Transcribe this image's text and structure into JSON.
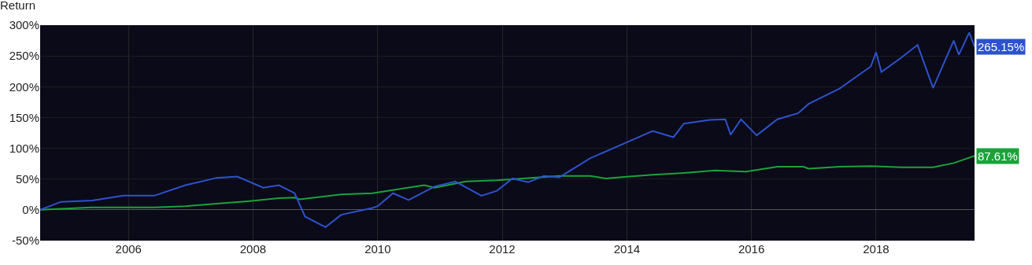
{
  "chart_data": {
    "type": "line",
    "title": "Return",
    "grid": true,
    "xlim": [
      "2004-08",
      "2019-08"
    ],
    "xticks": [
      {
        "value": "2006-01",
        "label": "2006"
      },
      {
        "value": "2008-01",
        "label": "2008"
      },
      {
        "value": "2010-01",
        "label": "2010"
      },
      {
        "value": "2012-01",
        "label": "2012"
      },
      {
        "value": "2014-01",
        "label": "2014"
      },
      {
        "value": "2016-01",
        "label": "2016"
      },
      {
        "value": "2018-01",
        "label": "2018"
      }
    ],
    "ylim": [
      -50,
      300
    ],
    "yticks": [
      {
        "value": -50,
        "label": "-50%"
      },
      {
        "value": 0,
        "label": "0%"
      },
      {
        "value": 50,
        "label": "50%"
      },
      {
        "value": 100,
        "label": "100%"
      },
      {
        "value": 150,
        "label": "150%"
      },
      {
        "value": 200,
        "label": "200%"
      },
      {
        "value": 250,
        "label": "250%"
      },
      {
        "value": 300,
        "label": "300%"
      }
    ],
    "series": [
      {
        "color": "#1aa33a",
        "x": [
          "2004-08",
          "2005-06",
          "2006-06",
          "2006-12",
          "2007-06",
          "2007-12",
          "2008-06",
          "2008-09",
          "2008-10",
          "2009-06",
          "2009-12",
          "2010-10",
          "2010-12",
          "2011-06",
          "2011-12",
          "2012-12",
          "2013-06",
          "2013-09",
          "2013-12",
          "2014-06",
          "2014-12",
          "2015-06",
          "2015-12",
          "2016-06",
          "2016-11",
          "2016-12",
          "2017-06",
          "2017-12",
          "2018-06",
          "2018-12",
          "2019-04",
          "2019-08"
        ],
        "values": [
          0,
          4,
          4,
          6,
          10,
          14,
          19,
          20,
          17,
          25,
          27,
          40,
          36,
          46,
          48,
          55,
          55,
          51,
          53,
          57,
          60,
          64,
          62,
          70,
          70,
          67,
          70,
          71,
          69,
          69,
          76,
          87.61
        ],
        "value_labels": [
          null,
          null,
          null,
          null,
          null,
          null,
          null,
          null,
          null,
          null,
          null,
          null,
          null,
          null,
          null,
          null,
          null,
          null,
          null,
          null,
          null,
          null,
          null,
          null,
          null,
          null,
          null,
          null,
          null,
          null,
          null,
          "87.61%"
        ]
      },
      {
        "color": "#2d52cc",
        "x": [
          "2004-08",
          "2004-12",
          "2005-06",
          "2005-12",
          "2006-06",
          "2006-12",
          "2007-06",
          "2007-10",
          "2008-03",
          "2008-06",
          "2008-09",
          "2008-11",
          "2009-03",
          "2009-06",
          "2009-12",
          "2010-01",
          "2010-04",
          "2010-07",
          "2010-12",
          "2011-04",
          "2011-09",
          "2011-12",
          "2012-03",
          "2012-06",
          "2012-09",
          "2012-12",
          "2013-06",
          "2013-12",
          "2014-06",
          "2014-10",
          "2014-12",
          "2015-05",
          "2015-08",
          "2015-09",
          "2015-11",
          "2016-02",
          "2016-06",
          "2016-10",
          "2016-12",
          "2017-06",
          "2017-12",
          "2018-01",
          "2018-02",
          "2018-06",
          "2018-09",
          "2018-12",
          "2019-04",
          "2019-05",
          "2019-07",
          "2019-08"
        ],
        "values": [
          0,
          13,
          15,
          23,
          23,
          40,
          52,
          54,
          36,
          40,
          27,
          -11,
          -28,
          -8,
          3,
          6,
          27,
          16,
          38,
          46,
          23,
          31,
          51,
          45,
          55,
          53,
          84,
          106,
          128,
          118,
          140,
          146,
          147,
          122,
          147,
          121,
          147,
          157,
          172,
          197,
          233,
          256,
          224,
          248,
          268,
          198,
          275,
          252,
          288,
          265.15
        ],
        "value_labels": [
          null,
          null,
          null,
          null,
          null,
          null,
          null,
          null,
          null,
          null,
          null,
          null,
          null,
          null,
          null,
          null,
          null,
          null,
          null,
          null,
          null,
          null,
          null,
          null,
          null,
          null,
          null,
          null,
          null,
          null,
          null,
          null,
          null,
          null,
          null,
          null,
          null,
          null,
          null,
          null,
          null,
          null,
          null,
          null,
          null,
          null,
          null,
          null,
          null,
          "265.15%"
        ]
      }
    ]
  }
}
